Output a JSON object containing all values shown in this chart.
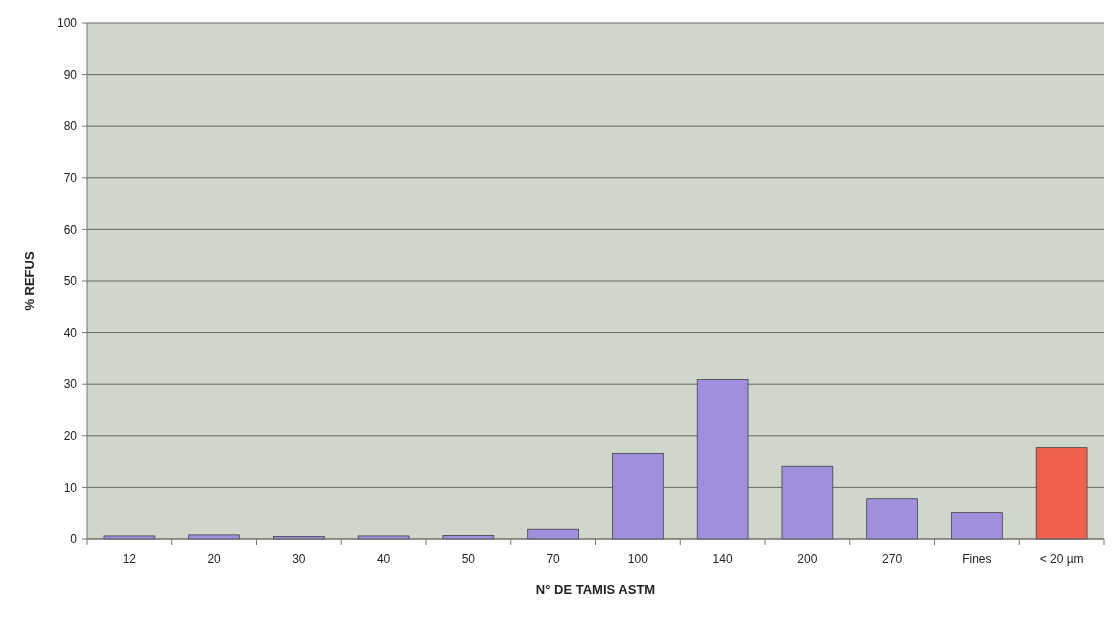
{
  "chart_data": {
    "type": "bar",
    "xlabel": "N° DE TAMIS ASTM",
    "ylabel": "% REFUS",
    "categories": [
      "12",
      "20",
      "30",
      "40",
      "50",
      "70",
      "100",
      "140",
      "200",
      "270",
      "Fines",
      "< 20 µm"
    ],
    "values": [
      0.6,
      0.8,
      0.5,
      0.6,
      0.7,
      1.9,
      16.6,
      30.9,
      14.1,
      7.8,
      5.1,
      17.7
    ],
    "colors": [
      "#9f8fdc",
      "#9f8fdc",
      "#9f8fdc",
      "#9f8fdc",
      "#9f8fdc",
      "#9f8fdc",
      "#9f8fdc",
      "#9f8fdc",
      "#9f8fdc",
      "#9f8fdc",
      "#9f8fdc",
      "#f0604e"
    ],
    "ylim": [
      0,
      100
    ],
    "yticks": [
      0,
      10,
      20,
      30,
      40,
      50,
      60,
      70,
      80,
      90,
      100
    ],
    "grid": "y"
  }
}
